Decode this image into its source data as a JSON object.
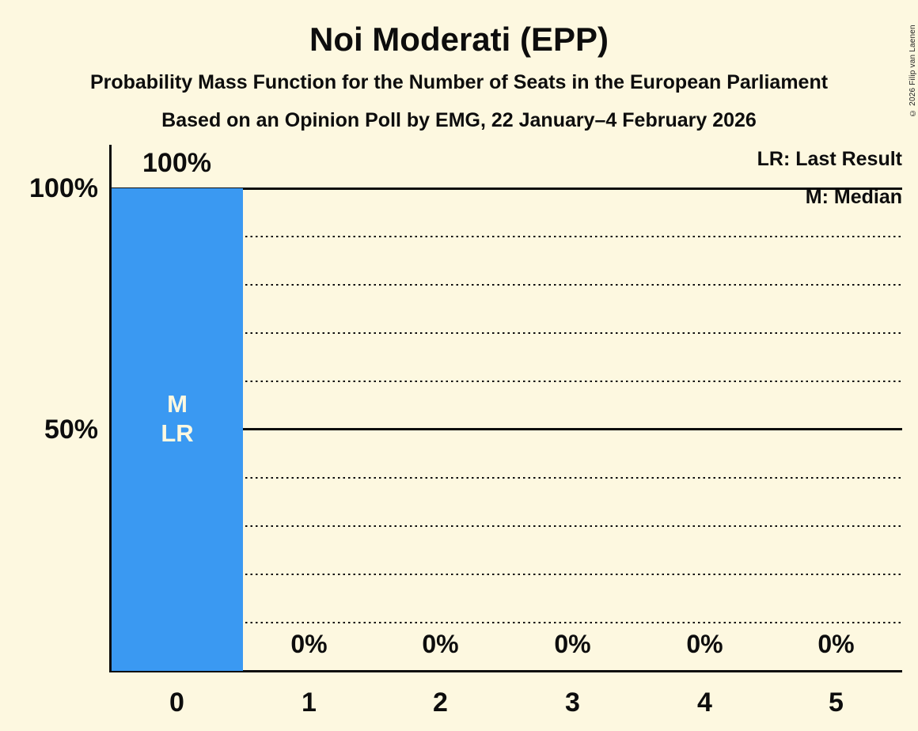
{
  "page": {
    "title": "Noi Moderati (EPP)",
    "subtitle_line1": "Probability Mass Function for the Number of Seats in the European Parliament",
    "subtitle_line2": "Based on an Opinion Poll by EMG, 22 January–4 February 2026",
    "copyright": "© 2026 Filip van Laenen"
  },
  "legend": {
    "last_result": "LR: Last Result",
    "median": "M: Median"
  },
  "colors": {
    "background": "#FDF8E0",
    "bar_fill": "#3A99F2",
    "text": "#0D0D0D"
  },
  "chart_data": {
    "type": "bar",
    "title": "Noi Moderati (EPP)",
    "categories": [
      "0",
      "1",
      "2",
      "3",
      "4",
      "5"
    ],
    "values": [
      100,
      0,
      0,
      0,
      0,
      0
    ],
    "bar_value_labels": [
      "100%",
      "0%",
      "0%",
      "0%",
      "0%",
      "0%"
    ],
    "bar0_annotations": [
      "M",
      "LR"
    ],
    "ytick_labels": [
      "100%",
      "50%"
    ],
    "yticks": [
      100,
      50
    ],
    "ylim": [
      0,
      100
    ],
    "gridlines": {
      "dotted_percent": [
        10,
        20,
        30,
        40,
        60,
        70,
        80,
        90
      ],
      "solid_percent": [
        50,
        100
      ]
    },
    "legend_position": "top-right",
    "grid": "on"
  }
}
